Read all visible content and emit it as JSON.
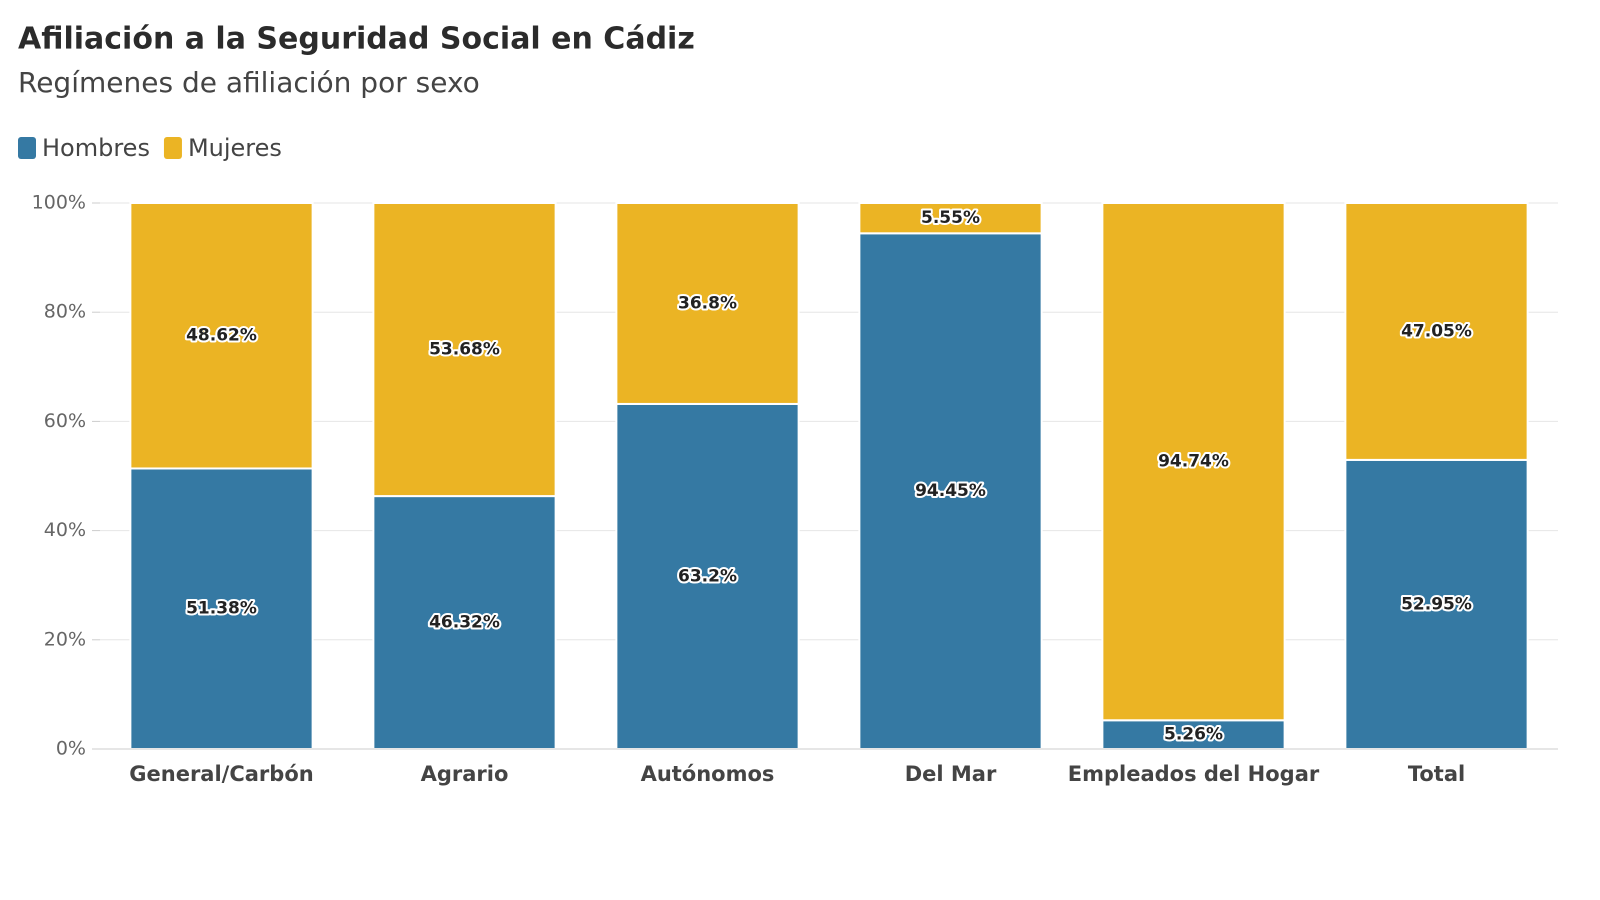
{
  "chart_data": {
    "type": "bar",
    "stacked": true,
    "title": "Afiliación a la Seguridad Social en Cádiz",
    "subtitle": "Regímenes de afiliación por sexo",
    "categories": [
      "General/Carbón",
      "Agrario",
      "Autónomos",
      "Del Mar",
      "Empleados del Hogar",
      "Total"
    ],
    "series": [
      {
        "name": "Hombres",
        "color": "#3579a3",
        "values": [
          51.38,
          46.32,
          63.2,
          94.45,
          5.26,
          52.95
        ],
        "value_labels": [
          "51.38%",
          "46.32%",
          "63.2%",
          "94.45%",
          "5.26%",
          "52.95%"
        ]
      },
      {
        "name": "Mujeres",
        "color": "#ebb424",
        "values": [
          48.62,
          53.68,
          36.8,
          5.55,
          94.74,
          47.05
        ],
        "value_labels": [
          "48.62%",
          "53.68%",
          "36.8%",
          "5.55%",
          "94.74%",
          "47.05%"
        ]
      }
    ],
    "ylim": [
      0,
      100
    ],
    "yticks": [
      {
        "value": 0,
        "label": "0%"
      },
      {
        "value": 20,
        "label": "20%"
      },
      {
        "value": 40,
        "label": "40%"
      },
      {
        "value": 60,
        "label": "60%"
      },
      {
        "value": 80,
        "label": "80%"
      },
      {
        "value": 100,
        "label": "100%"
      }
    ],
    "grid": true,
    "legend": "top-left"
  }
}
